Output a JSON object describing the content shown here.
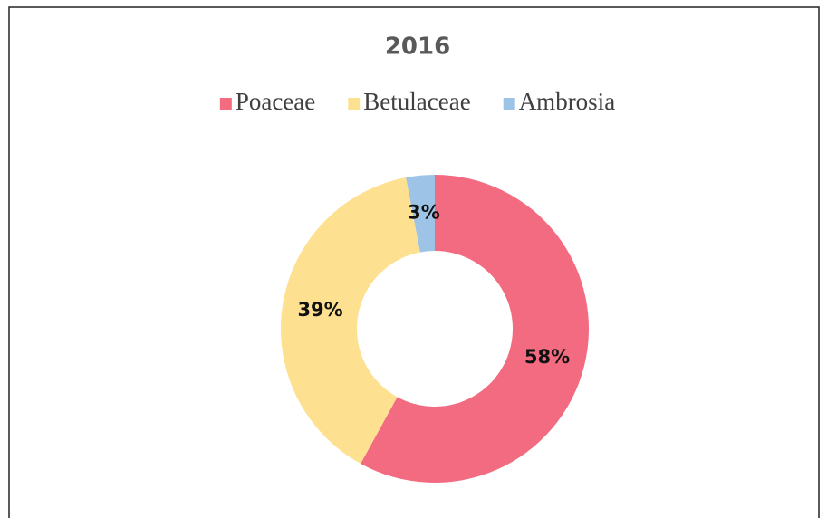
{
  "chart_data": {
    "type": "donut",
    "title": "2016",
    "categories": [
      "Poaceae",
      "Betulaceae",
      "Ambrosia"
    ],
    "values": [
      58,
      39,
      3
    ],
    "value_labels": [
      "58%",
      "39%",
      "3%"
    ],
    "colors": [
      "#f26b80",
      "#fde191",
      "#9dc3e6"
    ],
    "legend": "top"
  }
}
